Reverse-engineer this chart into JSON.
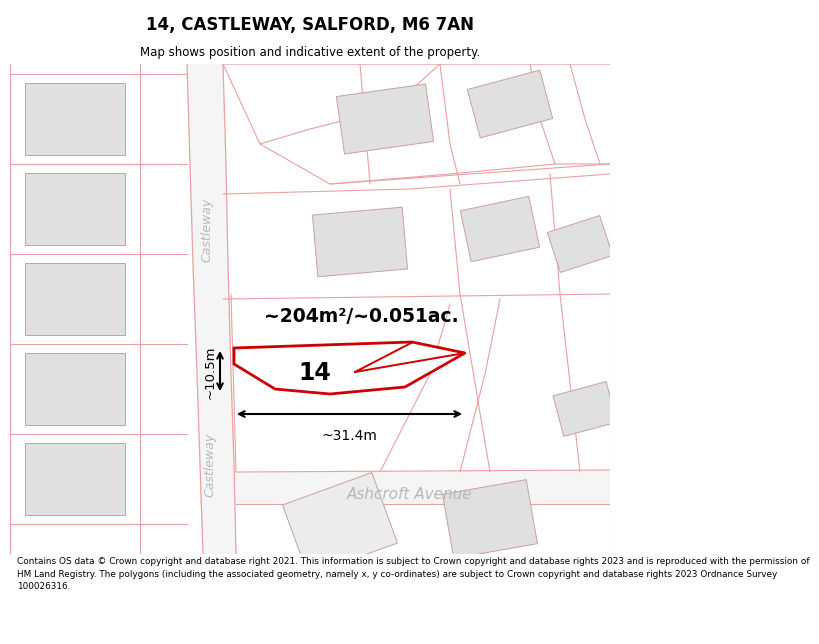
{
  "title": "14, CASTLEWAY, SALFORD, M6 7AN",
  "subtitle": "Map shows position and indicative extent of the property.",
  "footer": "Contains OS data © Crown copyright and database right 2021. This information is subject to Crown copyright and database rights 2023 and is reproduced with the permission of\nHM Land Registry. The polygons (including the associated geometry, namely x, y co-ordinates) are subject to Crown copyright and database rights 2023 Ordnance Survey\n100026316.",
  "road_outline": "#e8a0a0",
  "building_fill": "#e0e0e0",
  "building_outline": "#c8a0a0",
  "highlight_outline": "#cc0000",
  "street_label_color": "#b8b8b8",
  "area_text": "~204m²/~0.051ac.",
  "plot_number": "14",
  "dim_width": "~31.4m",
  "dim_height": "~10.5m",
  "castleway_label": "Castleway",
  "ashcroft_label": "Ashcroft Avenue"
}
